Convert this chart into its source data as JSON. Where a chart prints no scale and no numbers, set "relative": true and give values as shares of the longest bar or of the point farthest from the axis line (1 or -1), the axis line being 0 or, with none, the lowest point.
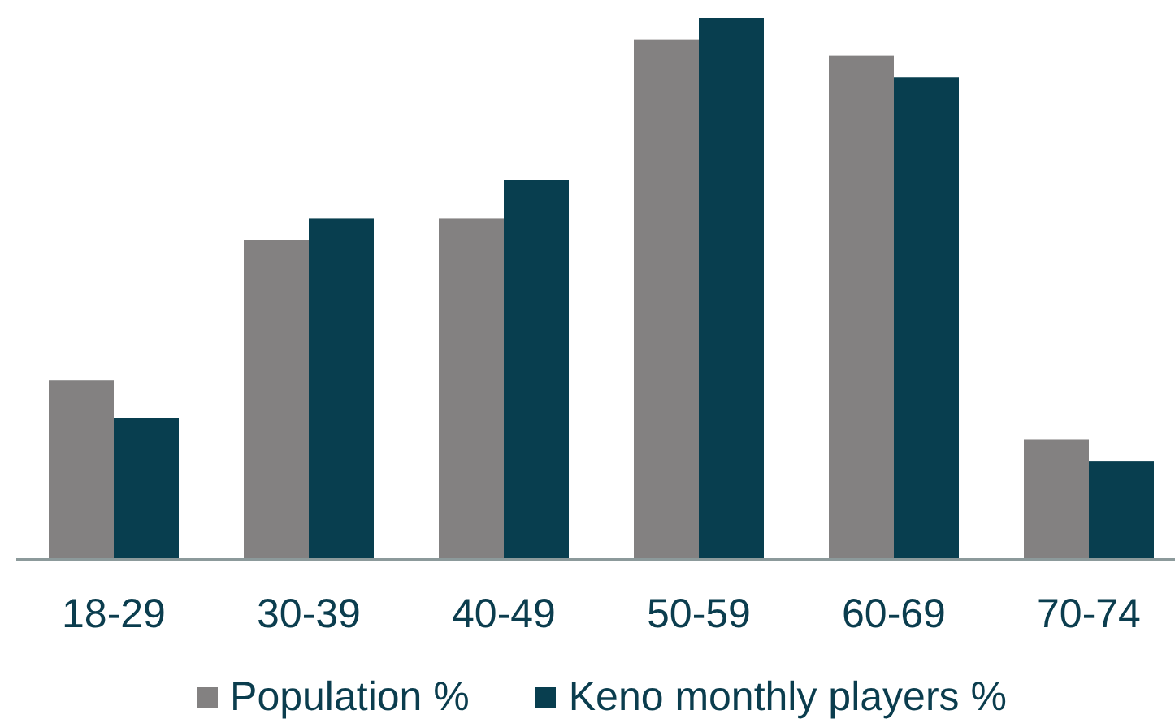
{
  "chart_data": {
    "type": "bar",
    "categories": [
      "18-29",
      "30-39",
      "40-49",
      "50-59",
      "60-69",
      "70-74"
    ],
    "series": [
      {
        "name": "Population %",
        "color": "#838181",
        "values": [
          0.33,
          0.59,
          0.63,
          0.96,
          0.93,
          0.22
        ]
      },
      {
        "name": "Keno monthly players %",
        "color": "#083e4f",
        "values": [
          0.26,
          0.63,
          0.7,
          1,
          0.89,
          0.18
        ]
      }
    ],
    "relative": true,
    "legend": "bottom"
  }
}
